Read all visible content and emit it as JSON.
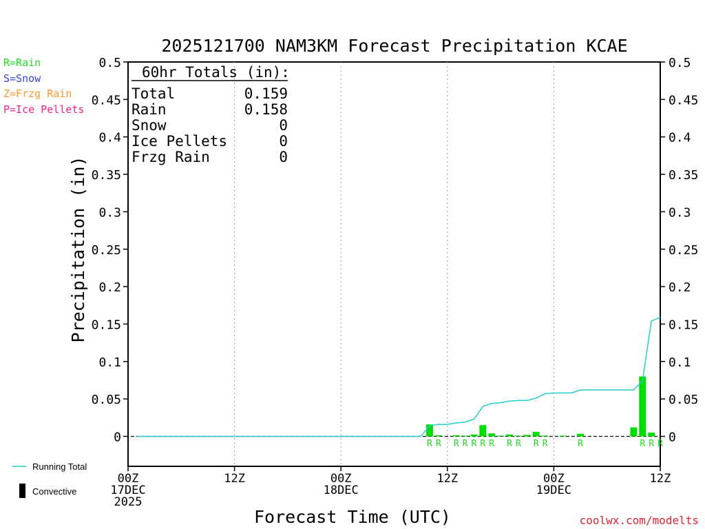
{
  "chart_data": {
    "type": "bar",
    "title": "2025121700 NAM3KM Forecast Precipitation KCAE",
    "xlabel": "Forecast Time (UTC)",
    "ylabel": "Precipitation (in)",
    "ylim": [
      -0.04,
      0.5
    ],
    "xlim": [
      0,
      60
    ],
    "yticks": [
      "0.5",
      "0.45",
      "0.4",
      "0.35",
      "0.3",
      "0.25",
      "0.2",
      "0.15",
      "0.1",
      "0.05",
      "0"
    ],
    "xticks": [
      {
        "hour": 0,
        "line1": "00Z",
        "line2": "17DEC",
        "line3": "2025"
      },
      {
        "hour": 12,
        "line1": "12Z",
        "line2": "",
        "line3": ""
      },
      {
        "hour": 24,
        "line1": "00Z",
        "line2": "18DEC",
        "line3": ""
      },
      {
        "hour": 36,
        "line1": "12Z",
        "line2": "",
        "line3": ""
      },
      {
        "hour": 48,
        "line1": "00Z",
        "line2": "19DEC",
        "line3": ""
      },
      {
        "hour": 60,
        "line1": "12Z",
        "line2": "",
        "line3": ""
      }
    ],
    "grid": "vertical dotted at 12h",
    "hourly_precip": [
      {
        "hour": 34,
        "value": 0.016,
        "type": "R"
      },
      {
        "hour": 35,
        "value": 0.0015,
        "type": "R"
      },
      {
        "hour": 37,
        "value": 0.0015,
        "type": "R"
      },
      {
        "hour": 38,
        "value": 0.001,
        "type": "R"
      },
      {
        "hour": 39,
        "value": 0.0025,
        "type": "R"
      },
      {
        "hour": 40,
        "value": 0.015,
        "type": "R"
      },
      {
        "hour": 41,
        "value": 0.004,
        "type": "R"
      },
      {
        "hour": 42,
        "value": 0.001,
        "type": "R"
      },
      {
        "hour": 43,
        "value": 0.0025,
        "type": "R"
      },
      {
        "hour": 44,
        "value": 0.001,
        "type": "R"
      },
      {
        "hour": 45,
        "value": 0.002,
        "type": "R"
      },
      {
        "hour": 46,
        "value": 0.006,
        "type": "R"
      },
      {
        "hour": 47,
        "value": 0.001,
        "type": "R"
      },
      {
        "hour": 49,
        "value": 0.0005,
        "type": "R"
      },
      {
        "hour": 51,
        "value": 0.0035,
        "type": "R"
      },
      {
        "hour": 57,
        "value": 0.012,
        "type": "R"
      },
      {
        "hour": 58,
        "value": 0.08,
        "type": "R"
      },
      {
        "hour": 59,
        "value": 0.005,
        "type": "R"
      }
    ],
    "ptype_labels": [
      {
        "hour": 34,
        "text": "R"
      },
      {
        "hour": 35,
        "text": "R"
      },
      {
        "hour": 37,
        "text": "R"
      },
      {
        "hour": 38,
        "text": "R"
      },
      {
        "hour": 39,
        "text": "R"
      },
      {
        "hour": 40,
        "text": "R"
      },
      {
        "hour": 41,
        "text": "R"
      },
      {
        "hour": 43,
        "text": "R"
      },
      {
        "hour": 44,
        "text": "R"
      },
      {
        "hour": 46,
        "text": "R"
      },
      {
        "hour": 47,
        "text": "R"
      },
      {
        "hour": 51,
        "text": "R"
      },
      {
        "hour": 58,
        "text": "R"
      },
      {
        "hour": 59,
        "text": "R"
      },
      {
        "hour": 60,
        "text": "R"
      }
    ],
    "running_total": {
      "name": "Running Total",
      "x": [
        1,
        33,
        34,
        35,
        36,
        37,
        38,
        39,
        40,
        41,
        42,
        43,
        44,
        45,
        46,
        47,
        48,
        49,
        50,
        51,
        52,
        53,
        54,
        55,
        56,
        57,
        58,
        59,
        60
      ],
      "y": [
        0,
        0,
        0.014,
        0.016,
        0.016,
        0.018,
        0.019,
        0.023,
        0.04,
        0.044,
        0.045,
        0.047,
        0.048,
        0.048,
        0.051,
        0.057,
        0.058,
        0.058,
        0.058,
        0.062,
        0.062,
        0.062,
        0.062,
        0.062,
        0.062,
        0.062,
        0.074,
        0.154,
        0.159
      ]
    }
  },
  "legend": {
    "rain": "R=Rain",
    "snow": "S=Snow",
    "frzg": "Z=Frzg Rain",
    "ice": "P=Ice Pellets",
    "running_total": "Running Total",
    "convective": "Convective",
    "colors": {
      "rain": "#22dd22",
      "snow": "#3344dd",
      "frzg": "#ff9922",
      "ice": "#ee2288",
      "line": "#22cccc",
      "bar": "#00dd00"
    }
  },
  "totals": {
    "heading": "60hr Totals (in):",
    "rows": [
      {
        "label": "Total",
        "value": "0.159"
      },
      {
        "label": "Rain",
        "value": "0.158"
      },
      {
        "label": "Snow",
        "value": "0"
      },
      {
        "label": "Ice Pellets",
        "value": "0"
      },
      {
        "label": "Frzg Rain",
        "value": "0"
      }
    ]
  },
  "watermark": "coolwx.com/modelts"
}
